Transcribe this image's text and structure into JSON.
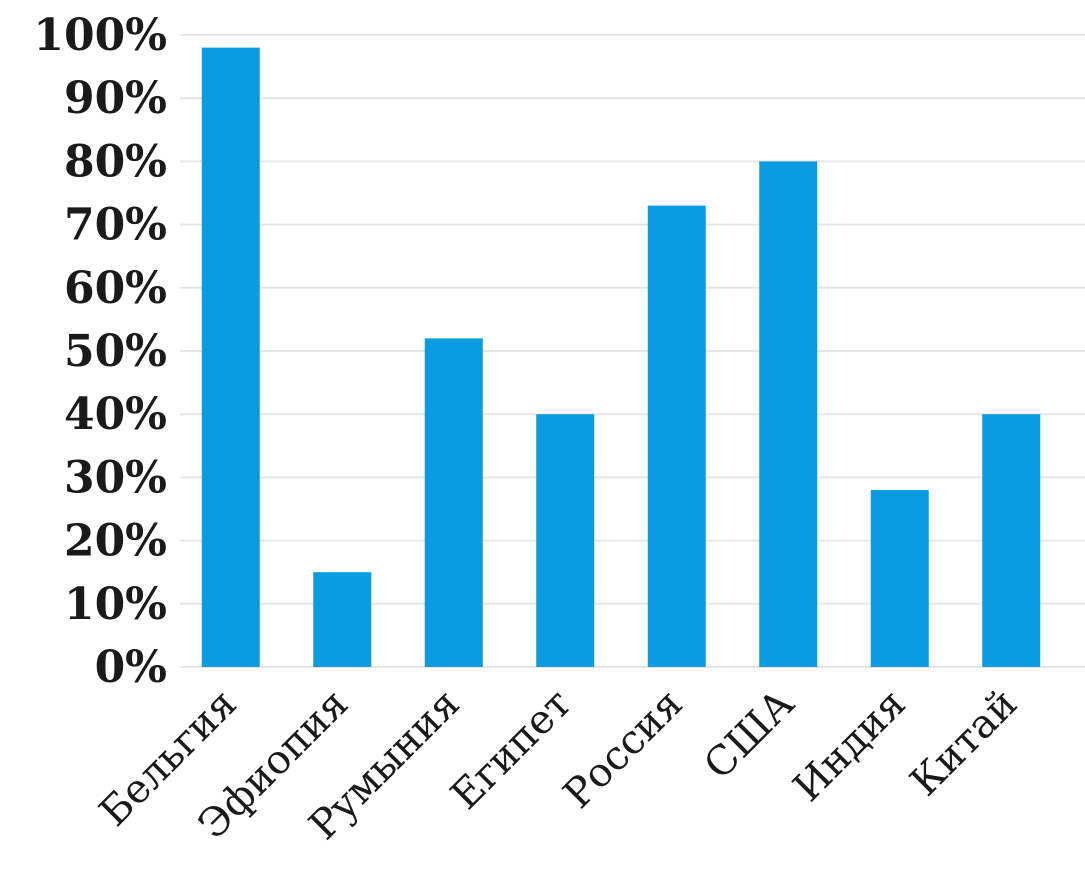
{
  "chart_data": {
    "type": "bar",
    "title": "",
    "xlabel": "",
    "ylabel": "",
    "categories": [
      "Бельгия",
      "Эфиопия",
      "Румыния",
      "Египет",
      "Россия",
      "США",
      "Индия",
      "Китай"
    ],
    "values": [
      98,
      15,
      52,
      40,
      73,
      80,
      28,
      40
    ],
    "ylim": [
      0,
      100
    ],
    "yticks": [
      "0%",
      "10%",
      "20%",
      "30%",
      "40%",
      "50%",
      "60%",
      "70%",
      "80%",
      "90%",
      "100%"
    ],
    "grid": true,
    "legend": "none",
    "bar_color": "#0a9be0",
    "grid_color": "#e6e6e6"
  }
}
